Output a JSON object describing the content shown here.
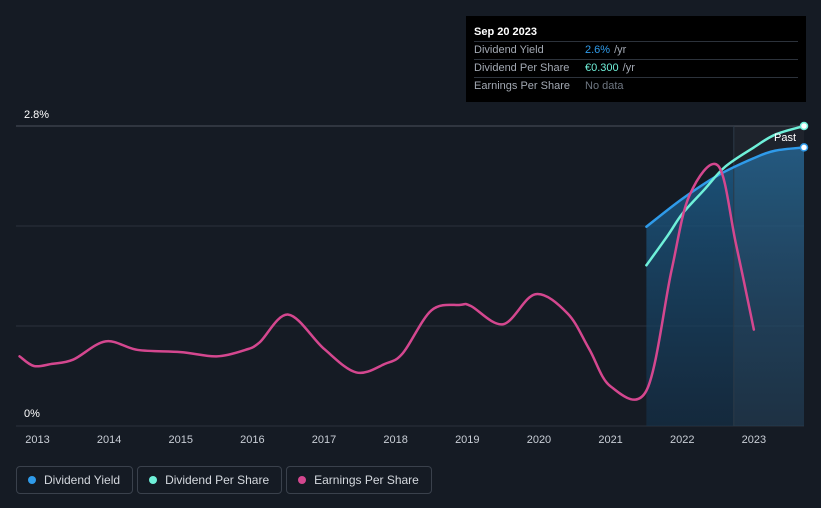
{
  "tooltip": {
    "date": "Sep 20 2023",
    "rows": [
      {
        "label": "Dividend Yield",
        "value": "2.6%",
        "unit": "/yr"
      },
      {
        "label": "Dividend Per Share",
        "value": "€0.300",
        "unit": "/yr"
      },
      {
        "label": "Earnings Per Share",
        "value": "No data",
        "unit": ""
      }
    ]
  },
  "past_label": "Past",
  "legend": [
    {
      "label": "Dividend Yield",
      "color": "#2f9bea"
    },
    {
      "label": "Dividend Per Share",
      "color": "#6ff0d9"
    },
    {
      "label": "Earnings Per Share",
      "color": "#d4478f"
    }
  ],
  "chart_data": {
    "type": "line",
    "x_ticks": [
      "2013",
      "2014",
      "2015",
      "2016",
      "2017",
      "2018",
      "2019",
      "2020",
      "2021",
      "2022",
      "2023"
    ],
    "y_tick_labels": [
      "2.8%",
      "0%"
    ],
    "ylim": [
      0,
      2.8
    ],
    "xlim": [
      2012.7,
      2023.7
    ],
    "grid": true,
    "legend_position": "bottom-left",
    "series": [
      {
        "name": "Dividend Yield",
        "color": "#2f9bea",
        "points": [
          [
            2021.5,
            1.86
          ],
          [
            2022.0,
            2.12
          ],
          [
            2022.5,
            2.34
          ],
          [
            2023.0,
            2.5
          ],
          [
            2023.3,
            2.57
          ],
          [
            2023.7,
            2.6
          ]
        ]
      },
      {
        "name": "Dividend Per Share",
        "color": "#6ff0d9",
        "points": [
          [
            2021.5,
            1.5
          ],
          [
            2021.8,
            1.78
          ],
          [
            2022.0,
            1.98
          ],
          [
            2022.3,
            2.2
          ],
          [
            2022.6,
            2.42
          ],
          [
            2023.0,
            2.6
          ],
          [
            2023.3,
            2.72
          ],
          [
            2023.7,
            2.8
          ]
        ]
      },
      {
        "name": "Earnings Per Share",
        "color": "#d4478f",
        "points": [
          [
            2012.75,
            0.65
          ],
          [
            2012.95,
            0.56
          ],
          [
            2013.2,
            0.58
          ],
          [
            2013.5,
            0.62
          ],
          [
            2013.95,
            0.79
          ],
          [
            2014.4,
            0.71
          ],
          [
            2015.0,
            0.69
          ],
          [
            2015.5,
            0.65
          ],
          [
            2015.9,
            0.71
          ],
          [
            2016.1,
            0.78
          ],
          [
            2016.5,
            1.04
          ],
          [
            2017.0,
            0.72
          ],
          [
            2017.45,
            0.5
          ],
          [
            2017.85,
            0.58
          ],
          [
            2018.1,
            0.68
          ],
          [
            2018.5,
            1.08
          ],
          [
            2018.9,
            1.13
          ],
          [
            2019.05,
            1.12
          ],
          [
            2019.5,
            0.95
          ],
          [
            2019.95,
            1.23
          ],
          [
            2020.4,
            1.05
          ],
          [
            2020.7,
            0.72
          ],
          [
            2021.0,
            0.37
          ],
          [
            2021.5,
            0.33
          ],
          [
            2021.85,
            1.45
          ],
          [
            2022.1,
            2.15
          ],
          [
            2022.5,
            2.43
          ],
          [
            2022.75,
            1.7
          ],
          [
            2023.0,
            0.9
          ]
        ]
      }
    ],
    "past_region_start": 2022.72,
    "shaded_region_start": 2021.5
  }
}
